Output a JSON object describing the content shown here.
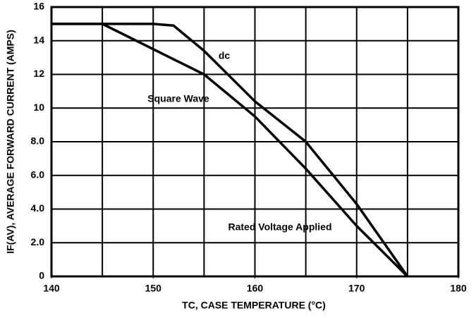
{
  "chart_data": {
    "type": "line",
    "xlabel": "TC, CASE TEMPERATURE (°C)",
    "ylabel": "IF(AV), AVERAGE FORWARD CURRENT (AMPS)",
    "x": [
      140,
      145,
      150,
      152,
      155,
      160,
      165,
      170,
      175
    ],
    "series": [
      {
        "name": "dc",
        "color": "#000000",
        "values": [
          15,
          15,
          15,
          14.9,
          13.4,
          10.4,
          8.0,
          4.3,
          0
        ]
      },
      {
        "name": "Square Wave",
        "color": "#000000",
        "values": [
          15,
          15,
          13.5,
          12.9,
          12.0,
          9.5,
          6.4,
          3.0,
          0
        ]
      }
    ],
    "annotations": [
      "Rated Voltage Applied"
    ],
    "xlim": [
      140,
      180
    ],
    "xticks": [
      140,
      150,
      160,
      170,
      180
    ],
    "xgrid": [
      145,
      150,
      155,
      160,
      165,
      170,
      175
    ],
    "ylim": [
      0,
      16
    ],
    "yticks": [
      0,
      {
        "value": 2,
        "label": "2.0"
      },
      {
        "value": 4,
        "label": "4.0"
      },
      {
        "value": 6,
        "label": "6.0"
      },
      {
        "value": 8,
        "label": "8.0"
      },
      10,
      12,
      14,
      16
    ],
    "grid": true
  }
}
